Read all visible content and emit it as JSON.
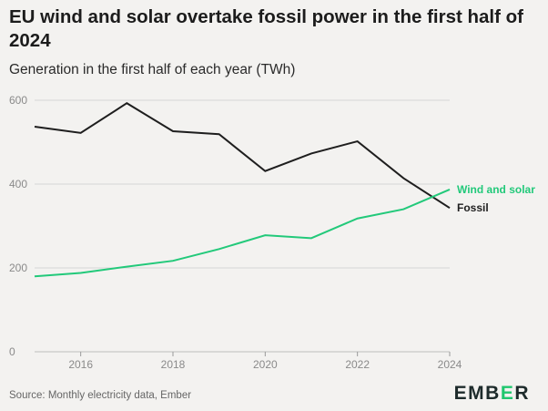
{
  "header": {
    "title": "EU wind and solar overtake fossil power in the first half of 2024",
    "subtitle": "Generation in the first half of each year (TWh)"
  },
  "footer": {
    "source": "Source: Monthly electricity data, Ember",
    "logo_text": "EMBER",
    "logo_accent_letter": "E"
  },
  "colors": {
    "wind_solar": "#22c97a",
    "fossil": "#1e1e1e",
    "grid": "#d6d6d6",
    "axis_text": "#8a8a8a"
  },
  "chart_data": {
    "type": "line",
    "x": [
      2015,
      2016,
      2017,
      2018,
      2019,
      2020,
      2021,
      2022,
      2023,
      2024
    ],
    "xlim": [
      2015,
      2024
    ],
    "ylim": [
      0,
      600
    ],
    "x_ticks": [
      "2016",
      "2018",
      "2020",
      "2022",
      "2024"
    ],
    "y_ticks": [
      "0",
      "200",
      "400",
      "600"
    ],
    "grid": "horizontal",
    "series": [
      {
        "name": "Fossil",
        "values": [
          537,
          522,
          593,
          526,
          519,
          431,
          473,
          502,
          414,
          343
        ]
      },
      {
        "name": "Wind and solar",
        "values": [
          180,
          188,
          203,
          217,
          245,
          278,
          271,
          318,
          340,
          387
        ]
      }
    ]
  }
}
